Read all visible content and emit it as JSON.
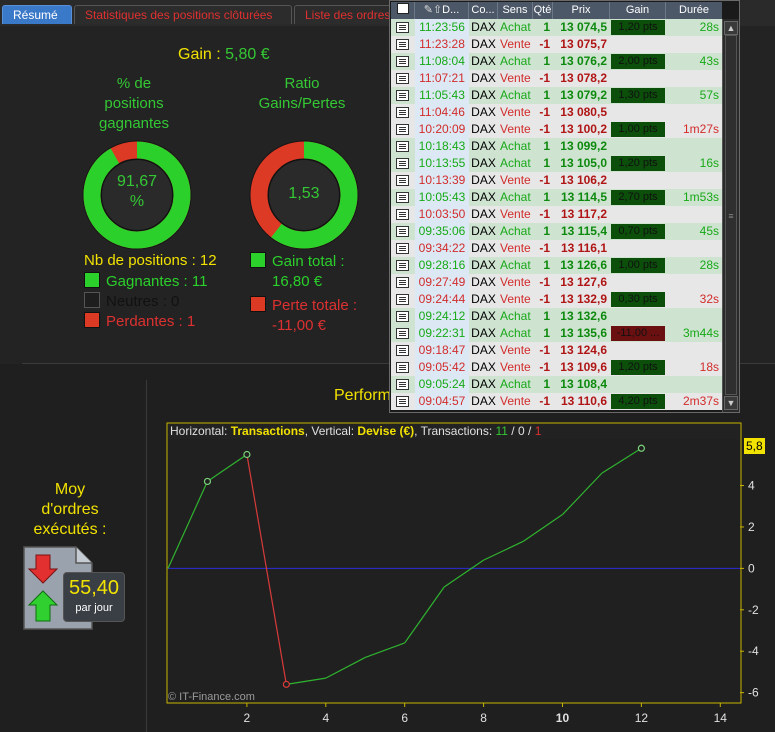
{
  "tabs": [
    {
      "label": "Résumé",
      "active": true
    },
    {
      "label": "Statistiques des positions clôturées",
      "active": false
    },
    {
      "label": "Liste des ordres",
      "active": false
    }
  ],
  "summary": {
    "gain_label": "Gain :",
    "gain_value": "5,80 €",
    "pct_title_l1": "% de",
    "pct_title_l2": "positions",
    "pct_title_l3": "gagnantes",
    "pct_value": "91,67",
    "pct_unit": "%",
    "pct_fraction": 0.9167,
    "ratio_title_l1": "Ratio",
    "ratio_title_l2": "Gains/Pertes",
    "ratio_value": "1,53",
    "ratio_fraction": 0.604,
    "nb_positions": "Nb de positions : 12",
    "gagnantes": "Gagnantes : 11",
    "neutres": "Neutres : 0",
    "perdantes": "Perdantes : 1",
    "gain_total_l1": "Gain total :",
    "gain_total_l2": "16,80 €",
    "perte_totale_l1": "Perte totale :",
    "perte_totale_l2": "-11,00 €",
    "colors": {
      "green": "#2bd02b",
      "red": "#dd3a25",
      "yellow": "#f2e200"
    }
  },
  "moy": {
    "l1": "Moy",
    "l2": "d'ordres",
    "l3": "exécutés :",
    "value": "55,40",
    "unit": "par jour"
  },
  "perf_title": "Performance",
  "chart_header": {
    "p1": "Horizontal: ",
    "h": "Transactions",
    "p2": ", Vertical: ",
    "v": "Devise (€)",
    "p3": ", Transactions: ",
    "g": "11",
    "s1": " / ",
    "n": "0",
    "s2": " / ",
    "r": "1"
  },
  "chart_data": {
    "type": "line",
    "x": [
      0,
      1,
      2,
      3,
      4,
      5,
      6,
      7,
      8,
      9,
      10,
      11,
      12
    ],
    "y": [
      0,
      4.2,
      5.5,
      -5.6,
      -5.3,
      -4.3,
      -3.6,
      -0.9,
      0.4,
      1.3,
      2.6,
      4.6,
      5.8
    ],
    "xlim": [
      0,
      14.5
    ],
    "ylim": [
      -6.5,
      6.2
    ],
    "xticks": [
      2,
      4,
      6,
      8,
      10,
      12,
      14
    ],
    "yticks": [
      -6,
      -4,
      -2,
      0,
      2,
      4
    ],
    "last_value": "5,8",
    "credit": "© IT-Finance.com"
  },
  "orders_panel": {
    "headers": [
      "",
      "D...",
      "Co...",
      "Sens",
      "Qté",
      "Prix",
      "Gain",
      "Durée"
    ],
    "rows": [
      {
        "time": "11:23:56",
        "code": "DAX",
        "sens": "Achat",
        "qty": "1",
        "price": "13 074,5",
        "gain": "1,20 pts",
        "gain_neg": false,
        "dur": "28s"
      },
      {
        "time": "11:23:28",
        "code": "DAX",
        "sens": "Vente",
        "qty": "-1",
        "price": "13 075,7",
        "gain": "",
        "gain_neg": false,
        "dur": ""
      },
      {
        "time": "11:08:04",
        "code": "DAX",
        "sens": "Achat",
        "qty": "1",
        "price": "13 076,2",
        "gain": "2,00 pts",
        "gain_neg": false,
        "dur": "43s"
      },
      {
        "time": "11:07:21",
        "code": "DAX",
        "sens": "Vente",
        "qty": "-1",
        "price": "13 078,2",
        "gain": "",
        "gain_neg": false,
        "dur": ""
      },
      {
        "time": "11:05:43",
        "code": "DAX",
        "sens": "Achat",
        "qty": "1",
        "price": "13 079,2",
        "gain": "1,30 pts",
        "gain_neg": false,
        "dur": "57s"
      },
      {
        "time": "11:04:46",
        "code": "DAX",
        "sens": "Vente",
        "qty": "-1",
        "price": "13 080,5",
        "gain": "",
        "gain_neg": false,
        "dur": ""
      },
      {
        "time": "10:20:09",
        "code": "DAX",
        "sens": "Vente",
        "qty": "-1",
        "price": "13 100,2",
        "gain": "1,00 pts",
        "gain_neg": false,
        "dur": "1m27s"
      },
      {
        "time": "10:18:43",
        "code": "DAX",
        "sens": "Achat",
        "qty": "1",
        "price": "13 099,2",
        "gain": "",
        "gain_neg": false,
        "dur": ""
      },
      {
        "time": "10:13:55",
        "code": "DAX",
        "sens": "Achat",
        "qty": "1",
        "price": "13 105,0",
        "gain": "1,20 pts",
        "gain_neg": false,
        "dur": "16s"
      },
      {
        "time": "10:13:39",
        "code": "DAX",
        "sens": "Vente",
        "qty": "-1",
        "price": "13 106,2",
        "gain": "",
        "gain_neg": false,
        "dur": ""
      },
      {
        "time": "10:05:43",
        "code": "DAX",
        "sens": "Achat",
        "qty": "1",
        "price": "13 114,5",
        "gain": "2,70 pts",
        "gain_neg": false,
        "dur": "1m53s"
      },
      {
        "time": "10:03:50",
        "code": "DAX",
        "sens": "Vente",
        "qty": "-1",
        "price": "13 117,2",
        "gain": "",
        "gain_neg": false,
        "dur": ""
      },
      {
        "time": "09:35:06",
        "code": "DAX",
        "sens": "Achat",
        "qty": "1",
        "price": "13 115,4",
        "gain": "0,70 pts",
        "gain_neg": false,
        "dur": "45s"
      },
      {
        "time": "09:34:22",
        "code": "DAX",
        "sens": "Vente",
        "qty": "-1",
        "price": "13 116,1",
        "gain": "",
        "gain_neg": false,
        "dur": ""
      },
      {
        "time": "09:28:16",
        "code": "DAX",
        "sens": "Achat",
        "qty": "1",
        "price": "13 126,6",
        "gain": "1,00 pts",
        "gain_neg": false,
        "dur": "28s"
      },
      {
        "time": "09:27:49",
        "code": "DAX",
        "sens": "Vente",
        "qty": "-1",
        "price": "13 127,6",
        "gain": "",
        "gain_neg": false,
        "dur": ""
      },
      {
        "time": "09:24:44",
        "code": "DAX",
        "sens": "Vente",
        "qty": "-1",
        "price": "13 132,9",
        "gain": "0,30 pts",
        "gain_neg": false,
        "dur": "32s"
      },
      {
        "time": "09:24:12",
        "code": "DAX",
        "sens": "Achat",
        "qty": "1",
        "price": "13 132,6",
        "gain": "",
        "gain_neg": false,
        "dur": ""
      },
      {
        "time": "09:22:31",
        "code": "DAX",
        "sens": "Achat",
        "qty": "1",
        "price": "13 135,6",
        "gain": "-11,00 ...",
        "gain_neg": true,
        "dur": "3m44s"
      },
      {
        "time": "09:18:47",
        "code": "DAX",
        "sens": "Vente",
        "qty": "-1",
        "price": "13 124,6",
        "gain": "",
        "gain_neg": false,
        "dur": ""
      },
      {
        "time": "09:05:42",
        "code": "DAX",
        "sens": "Vente",
        "qty": "-1",
        "price": "13 109,6",
        "gain": "1,20 pts",
        "gain_neg": false,
        "dur": "18s"
      },
      {
        "time": "09:05:24",
        "code": "DAX",
        "sens": "Achat",
        "qty": "1",
        "price": "13 108,4",
        "gain": "",
        "gain_neg": false,
        "dur": ""
      },
      {
        "time": "09:04:57",
        "code": "DAX",
        "sens": "Vente",
        "qty": "-1",
        "price": "13 110,6",
        "gain": "4,20 pts",
        "gain_neg": false,
        "dur": "2m37s"
      }
    ]
  }
}
